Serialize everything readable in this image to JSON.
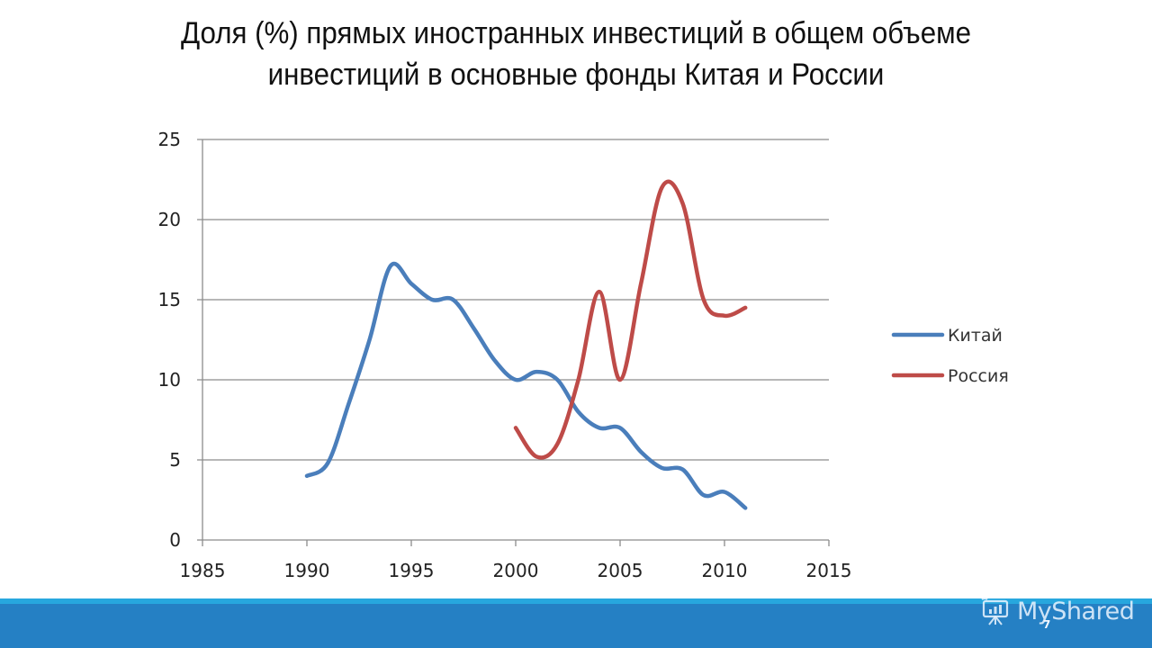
{
  "slide": {
    "title_line1": "Доля (%) прямых иностранных инвестиций в общем объеме",
    "title_line2": "инвестиций в основные фонды Китая и России",
    "page_number": "7"
  },
  "footer": {
    "brand_text": "MyShared",
    "brand_icon": "presentation-board-icon",
    "bar_color": "#2580c4",
    "stripe_color": "#27a7de"
  },
  "chart_data": {
    "type": "line",
    "title": "Доля (%) прямых иностранных инвестиций в общем объеме инвестиций в основные фонды Китая и России",
    "xlabel": "",
    "ylabel": "",
    "xlim": [
      1985,
      2015
    ],
    "ylim": [
      0,
      25
    ],
    "x_ticks": [
      1985,
      1990,
      1995,
      2000,
      2005,
      2010,
      2015
    ],
    "y_ticks": [
      0,
      5,
      10,
      15,
      20,
      25
    ],
    "grid": "horizontal",
    "smooth": true,
    "legend_position": "right",
    "series": [
      {
        "name": "Китай",
        "color": "#4a7ebb",
        "x": [
          1990,
          1991,
          1992,
          1993,
          1994,
          1995,
          1996,
          1997,
          1998,
          1999,
          2000,
          2001,
          2002,
          2003,
          2004,
          2005,
          2006,
          2007,
          2008,
          2009,
          2010,
          2011
        ],
        "values": [
          4.0,
          4.8,
          8.5,
          12.5,
          17.1,
          16.0,
          15.0,
          15.0,
          13.2,
          11.2,
          10.0,
          10.5,
          10.0,
          8.0,
          7.0,
          7.0,
          5.5,
          4.5,
          4.4,
          2.8,
          3.0,
          2.0
        ]
      },
      {
        "name": "Россия",
        "color": "#be4b48",
        "x": [
          2000,
          2001,
          2002,
          2003,
          2004,
          2005,
          2006,
          2007,
          2008,
          2009,
          2010,
          2011
        ],
        "values": [
          7.0,
          5.2,
          6.0,
          10.0,
          15.5,
          10.0,
          16.0,
          22.0,
          21.0,
          15.0,
          14.0,
          14.5
        ]
      }
    ]
  }
}
